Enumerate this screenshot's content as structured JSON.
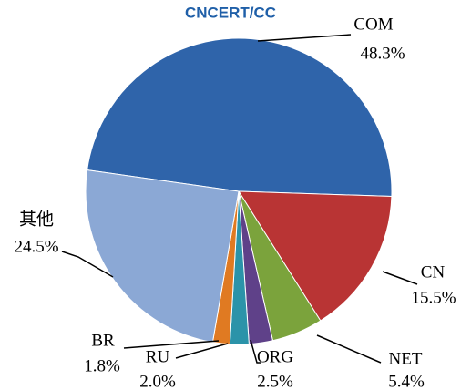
{
  "chart_data": {
    "type": "pie",
    "source": "CNCERT/CC",
    "categories": [
      "COM",
      "CN",
      "NET",
      "ORG",
      "RU",
      "BR",
      "其他"
    ],
    "values": [
      48.3,
      15.5,
      5.4,
      2.5,
      2.0,
      1.8,
      24.5
    ],
    "value_labels": [
      "48.3%",
      "15.5%",
      "5.4%",
      "2.5%",
      "2.0%",
      "1.8%",
      "24.5%"
    ],
    "colors": [
      "#2f64aa",
      "#b93434",
      "#7ba33c",
      "#5f4189",
      "#2b93a9",
      "#e07a22",
      "#8ba8d5"
    ]
  }
}
